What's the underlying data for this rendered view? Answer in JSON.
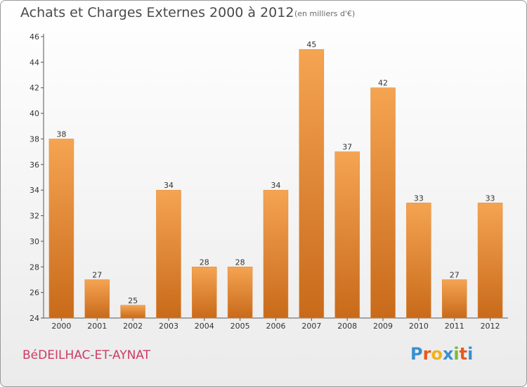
{
  "chart_data": {
    "type": "bar",
    "title": "Achats et Charges Externes 2000 à 2012",
    "subtitle": "(en milliers d'€)",
    "categories": [
      "2000",
      "2001",
      "2002",
      "2003",
      "2004",
      "2005",
      "2006",
      "2007",
      "2008",
      "2009",
      "2010",
      "2011",
      "2012"
    ],
    "values": [
      38,
      27,
      25,
      34,
      28,
      28,
      34,
      45,
      37,
      42,
      33,
      27,
      33
    ],
    "ylim": [
      24,
      46
    ],
    "yticks": [
      24,
      26,
      28,
      30,
      32,
      34,
      36,
      38,
      40,
      42,
      44,
      46
    ],
    "xlabel": "",
    "ylabel": "",
    "grid": false,
    "bar_color_top": "#f5a452",
    "bar_color_bottom": "#c86a1a"
  },
  "commune": "BéDEILHAC-ET-AYNAT",
  "logo": {
    "letters": [
      "P",
      "r",
      "o",
      "x",
      "i",
      "t",
      "i"
    ],
    "colors": [
      "#3a8fd0",
      "#e65a1e",
      "#f0b21c",
      "#3a8fd0",
      "#7ab83a",
      "#e65a1e",
      "#3a8fd0"
    ]
  }
}
